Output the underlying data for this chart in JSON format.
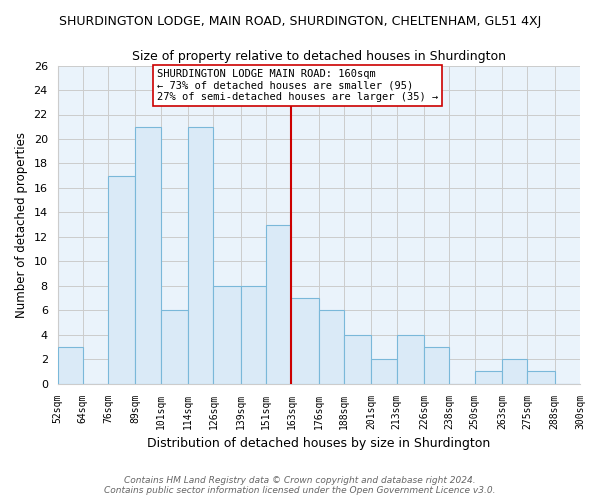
{
  "title": "SHURDINGTON LODGE, MAIN ROAD, SHURDINGTON, CHELTENHAM, GL51 4XJ",
  "subtitle": "Size of property relative to detached houses in Shurdington",
  "xlabel": "Distribution of detached houses by size in Shurdington",
  "ylabel": "Number of detached properties",
  "bar_edges": [
    52,
    64,
    76,
    89,
    101,
    114,
    126,
    139,
    151,
    163,
    176,
    188,
    201,
    213,
    226,
    238,
    250,
    263,
    275,
    288,
    300
  ],
  "bar_heights": [
    3,
    0,
    17,
    21,
    6,
    21,
    8,
    8,
    13,
    7,
    6,
    4,
    2,
    4,
    3,
    0,
    1,
    2,
    1,
    0
  ],
  "tick_labels": [
    "52sqm",
    "64sqm",
    "76sqm",
    "89sqm",
    "101sqm",
    "114sqm",
    "126sqm",
    "139sqm",
    "151sqm",
    "163sqm",
    "176sqm",
    "188sqm",
    "201sqm",
    "213sqm",
    "226sqm",
    "238sqm",
    "250sqm",
    "263sqm",
    "275sqm",
    "288sqm",
    "300sqm"
  ],
  "bar_color": "#daeaf7",
  "bar_edge_color": "#7ab8d9",
  "ref_line_x": 163,
  "ref_line_color": "#cc0000",
  "ylim": [
    0,
    26
  ],
  "yticks": [
    0,
    2,
    4,
    6,
    8,
    10,
    12,
    14,
    16,
    18,
    20,
    22,
    24,
    26
  ],
  "annotation_title": "SHURDINGTON LODGE MAIN ROAD: 160sqm",
  "annotation_line1": "← 73% of detached houses are smaller (95)",
  "annotation_line2": "27% of semi-detached houses are larger (35) →",
  "footer1": "Contains HM Land Registry data © Crown copyright and database right 2024.",
  "footer2": "Contains public sector information licensed under the Open Government Licence v3.0.",
  "bg_color": "#ffffff",
  "plot_bg_color": "#eaf3fb",
  "grid_color": "#cccccc"
}
